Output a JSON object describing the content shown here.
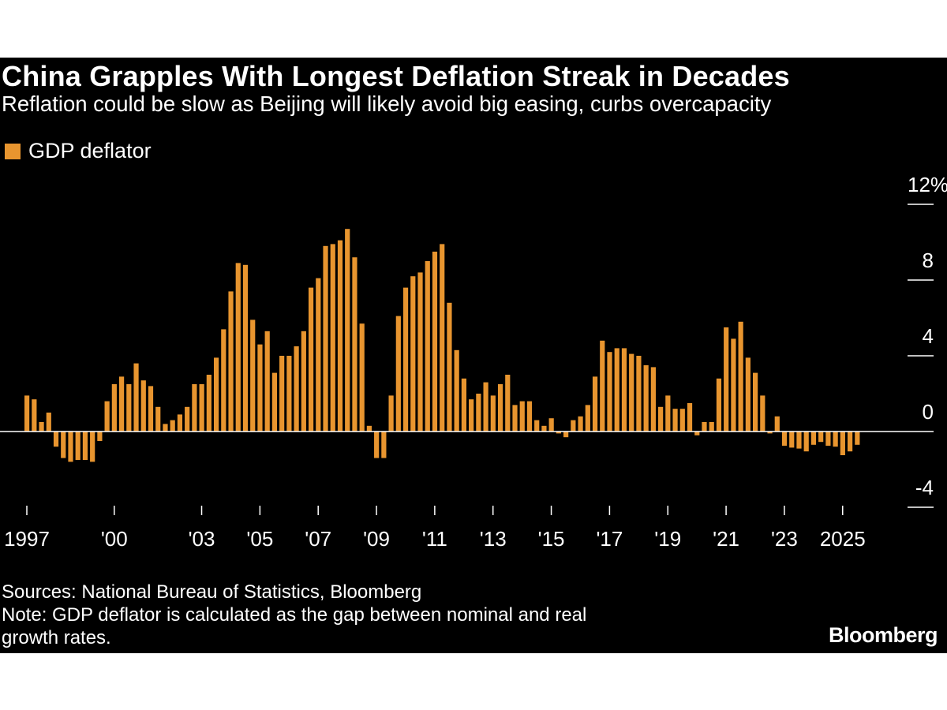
{
  "title": "China Grapples With Longest Deflation Streak in Decades",
  "subtitle": "Reflation could be slow as Beijing will likely avoid big easing, curbs overcapacity",
  "legend": {
    "label": "GDP deflator",
    "color": "#e8952f"
  },
  "footer": {
    "sources": "Sources: National Bureau of Statistics, Bloomberg",
    "note_line1": "Note: GDP deflator is calculated as the gap between nominal and real",
    "note_line2": "growth rates.",
    "brand": "Bloomberg"
  },
  "colors": {
    "background": "#000000",
    "bar": "#e8952f",
    "text": "#ffffff",
    "axis": "#ffffff"
  },
  "chart_data": {
    "type": "bar",
    "title": "China Grapples With Longest Deflation Streak in Decades",
    "xlabel": "",
    "ylabel": "",
    "ylim": [
      -5,
      12
    ],
    "y_unit": "%",
    "y_ticks": [
      {
        "value": 12,
        "label": "12%"
      },
      {
        "value": 8,
        "label": "8"
      },
      {
        "value": 4,
        "label": "4"
      },
      {
        "value": 0,
        "label": "0"
      },
      {
        "value": -4,
        "label": "-4"
      }
    ],
    "x_ticks": [
      {
        "year": 1997,
        "label": "1997"
      },
      {
        "year": 2000,
        "label": "'00"
      },
      {
        "year": 2003,
        "label": "'03"
      },
      {
        "year": 2005,
        "label": "'05"
      },
      {
        "year": 2007,
        "label": "'07"
      },
      {
        "year": 2009,
        "label": "'09"
      },
      {
        "year": 2011,
        "label": "'11"
      },
      {
        "year": 2013,
        "label": "'13"
      },
      {
        "year": 2015,
        "label": "'15"
      },
      {
        "year": 2017,
        "label": "'17"
      },
      {
        "year": 2019,
        "label": "'19"
      },
      {
        "year": 2021,
        "label": "'21"
      },
      {
        "year": 2023,
        "label": "'23"
      },
      {
        "year": 2025,
        "label": "2025"
      }
    ],
    "grid": false,
    "legend_position": "top-left",
    "frequency": "quarterly",
    "start": "1997Q1",
    "series": [
      {
        "name": "GDP deflator",
        "values": [
          1.9,
          1.7,
          0.5,
          1.0,
          -0.8,
          -1.4,
          -1.6,
          -1.5,
          -1.5,
          -1.6,
          -0.5,
          1.6,
          2.5,
          2.9,
          2.5,
          3.6,
          2.7,
          2.4,
          1.3,
          0.4,
          0.6,
          0.9,
          1.3,
          2.5,
          2.5,
          3.0,
          3.9,
          5.4,
          7.4,
          8.9,
          8.8,
          5.9,
          4.6,
          5.3,
          3.1,
          4.0,
          4.0,
          4.5,
          5.3,
          7.6,
          8.1,
          9.8,
          9.9,
          10.1,
          10.7,
          9.2,
          5.7,
          0.3,
          -1.4,
          -1.4,
          1.9,
          6.1,
          7.6,
          8.2,
          8.4,
          9.0,
          9.5,
          9.9,
          6.8,
          4.3,
          2.8,
          1.7,
          2.0,
          2.6,
          1.9,
          2.5,
          3.0,
          1.4,
          1.6,
          1.6,
          0.6,
          0.3,
          0.7,
          -0.1,
          -0.3,
          0.6,
          0.8,
          1.4,
          2.9,
          4.8,
          4.2,
          4.4,
          4.4,
          4.1,
          4.0,
          3.5,
          3.4,
          1.3,
          1.9,
          1.2,
          1.2,
          1.5,
          -0.2,
          0.5,
          0.5,
          2.8,
          5.5,
          4.9,
          5.8,
          3.9,
          3.1,
          1.9,
          -0.1,
          0.8,
          -0.75,
          -0.85,
          -0.9,
          -1.05,
          -0.7,
          -0.55,
          -0.75,
          -0.8,
          -1.25,
          -1.05,
          -0.7
        ]
      }
    ]
  }
}
